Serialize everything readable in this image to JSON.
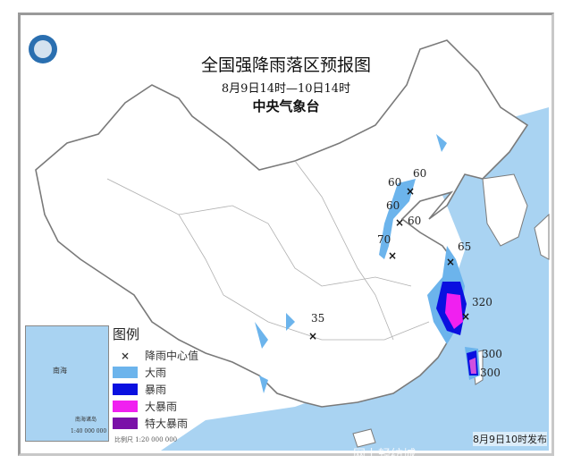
{
  "header": {
    "title": "全国强降雨落区预报图",
    "period": "8月9日14时—10日14时",
    "issuer": "中央气象台",
    "logo": "cma-logo"
  },
  "legend": {
    "title": "图例",
    "items": [
      {
        "label": "降雨中心值",
        "symbol": "×"
      },
      {
        "label": "大雨",
        "color": "#6cb4ec"
      },
      {
        "label": "暴雨",
        "color": "#0a10e0"
      },
      {
        "label": "大暴雨",
        "color": "#f020f0"
      },
      {
        "label": "特大暴雨",
        "color": "#7a10a8"
      }
    ]
  },
  "rain_centers": [
    "60",
    "60",
    "60",
    "60",
    "70",
    "65",
    "35",
    "320",
    "300",
    "300"
  ],
  "inset": {
    "title": "南海诸岛",
    "scale": "1:40 000 000",
    "sea": "南海"
  },
  "scale": "比例尺  1:20 000 000",
  "published": "8月9日10时发布",
  "watermark": "网上轻纺城",
  "colors": {
    "ocean": "#a9d3f2",
    "land": "#ffffff",
    "border": "#8a8a8a"
  }
}
